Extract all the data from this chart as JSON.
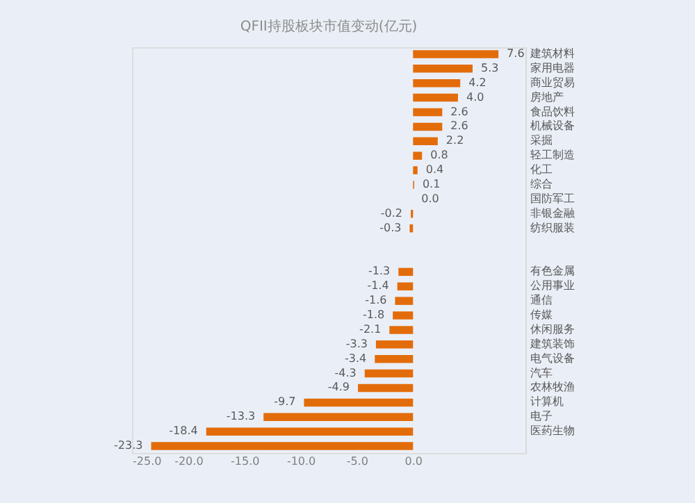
{
  "chart_data": {
    "type": "bar",
    "orientation": "horizontal",
    "title": "QFII持股板块市值变动(亿元)",
    "categories": [
      "建筑材料",
      "家用电器",
      "商业贸易",
      "房地产",
      "食品饮料",
      "机械设备",
      "采掘",
      "轻工制造",
      "化工",
      "综合",
      "国防军工",
      "非银金融",
      "纺织服装",
      null,
      null,
      "有色金属",
      "公用事业",
      "通信",
      "传媒",
      "休闲服务",
      "建筑装饰",
      "电气设备",
      "汽车",
      "农林牧渔",
      "计算机",
      "电子",
      "医药生物",
      null
    ],
    "values": [
      7.6,
      5.3,
      4.2,
      4.0,
      2.6,
      2.6,
      2.2,
      0.8,
      0.4,
      0.1,
      0.0,
      -0.2,
      -0.3,
      null,
      null,
      -1.3,
      -1.4,
      -1.6,
      -1.8,
      -2.1,
      -3.3,
      -3.4,
      -4.3,
      -4.9,
      -9.7,
      -13.3,
      -18.4,
      -23.3
    ],
    "color": "#e36c0a",
    "xlim": [
      -25,
      10
    ],
    "xticks": [
      {
        "value": -25,
        "label": "-25.0"
      },
      {
        "value": -20,
        "label": "-20.0"
      },
      {
        "value": -15,
        "label": "-15.0"
      },
      {
        "value": -10,
        "label": "-10.0"
      },
      {
        "value": -5,
        "label": "-5.0"
      },
      {
        "value": 0,
        "label": "0.0"
      }
    ],
    "value_labels": [
      "7.6",
      "5.3",
      "4.2",
      "4.0",
      "2.6",
      "2.6",
      "2.2",
      "0.8",
      "0.4",
      "0.1",
      "0.0",
      "-0.2",
      "-0.3",
      null,
      null,
      "-1.3",
      "-1.4",
      "-1.6",
      "-1.8",
      "-2.1",
      "-3.3",
      "-3.4",
      "-4.3",
      "-4.9",
      "-9.7",
      "-13.3",
      "-18.4",
      "-23.3"
    ],
    "grid": false
  }
}
